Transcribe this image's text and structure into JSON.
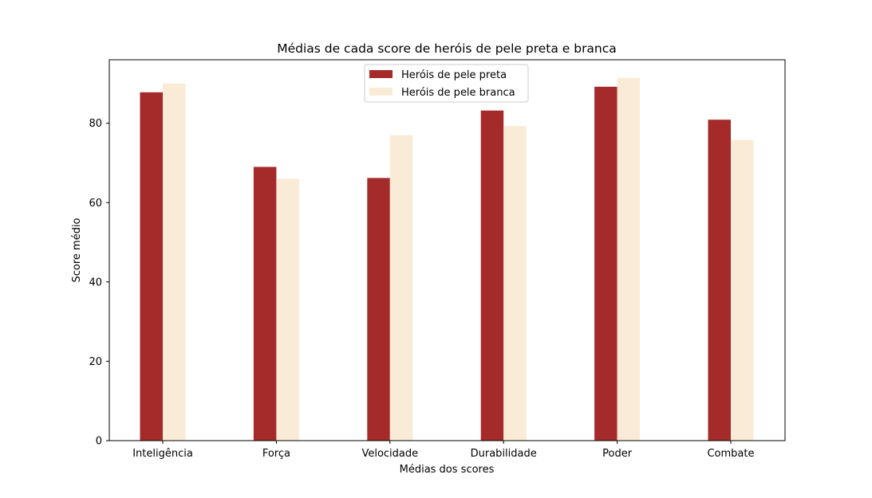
{
  "chart_data": {
    "type": "bar",
    "title": "Médias de cada score de heróis de pele preta e branca",
    "xlabel": "Médias dos scores",
    "ylabel": "Score médio",
    "categories": [
      "Inteligência",
      "Força",
      "Velocidade",
      "Durabilidade",
      "Poder",
      "Combate"
    ],
    "ylim": [
      0,
      96
    ],
    "yticks": [
      0,
      20,
      40,
      60,
      80
    ],
    "grid": false,
    "legend_position": "top-center",
    "series": [
      {
        "name": "Heróis de pele preta",
        "color": "#a52a2a",
        "values": [
          87.8,
          69.0,
          66.2,
          83.2,
          89.2,
          80.9
        ]
      },
      {
        "name": "Heróis de pele branca",
        "color": "#faebd7",
        "values": [
          90.0,
          66.0,
          77.0,
          79.3,
          91.4,
          75.8
        ]
      }
    ]
  }
}
